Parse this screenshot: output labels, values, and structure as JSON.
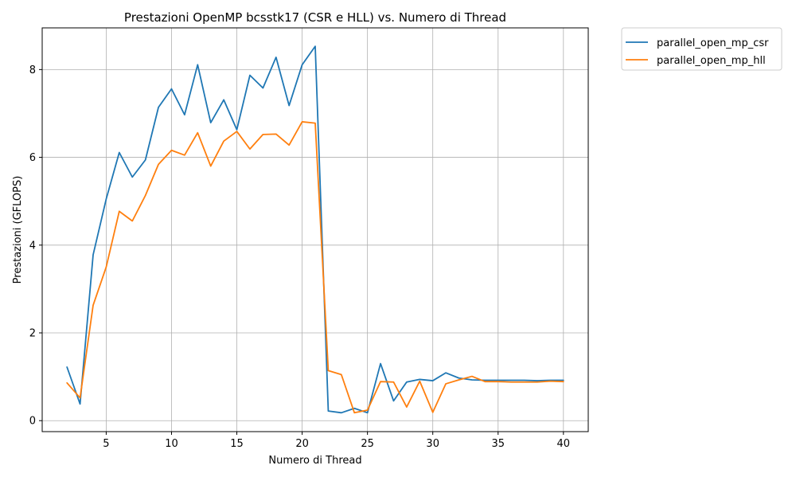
{
  "chart_data": {
    "type": "line",
    "title": "Prestazioni OpenMP bcsstk17 (CSR e HLL) vs. Numero di Thread",
    "xlabel": "Numero di Thread",
    "ylabel": "Prestazioni (GFLOPS)",
    "xlim": [
      0.1,
      41.9
    ],
    "ylim": [
      -0.25,
      8.95
    ],
    "xticks": [
      5,
      10,
      15,
      20,
      25,
      30,
      35,
      40
    ],
    "yticks": [
      0,
      2,
      4,
      6,
      8
    ],
    "grid": true,
    "legend_position": "outside-top-right",
    "x": [
      2,
      3,
      4,
      5,
      6,
      7,
      8,
      9,
      10,
      11,
      12,
      13,
      14,
      15,
      16,
      17,
      18,
      19,
      20,
      21,
      22,
      23,
      24,
      25,
      26,
      27,
      28,
      29,
      30,
      31,
      32,
      33,
      34,
      35,
      36,
      37,
      38,
      39,
      40
    ],
    "series": [
      {
        "name": "parallel_open_mp_csr",
        "color": "#1f77b4",
        "values": [
          1.22,
          0.38,
          3.78,
          5.05,
          6.11,
          5.55,
          5.94,
          7.14,
          7.56,
          6.97,
          8.11,
          6.79,
          7.31,
          6.63,
          7.87,
          7.58,
          8.28,
          7.18,
          8.11,
          8.53,
          0.22,
          0.18,
          0.28,
          0.18,
          1.3,
          0.45,
          0.88,
          0.94,
          0.91,
          1.09,
          0.97,
          0.93,
          0.92,
          0.92,
          0.92,
          0.92,
          0.91,
          0.92,
          0.92
        ]
      },
      {
        "name": "parallel_open_mp_hll",
        "color": "#ff7f0e",
        "values": [
          0.86,
          0.52,
          2.63,
          3.5,
          4.77,
          4.55,
          5.13,
          5.84,
          6.16,
          6.05,
          6.56,
          5.8,
          6.37,
          6.59,
          6.19,
          6.52,
          6.53,
          6.28,
          6.81,
          6.78,
          1.14,
          1.05,
          0.18,
          0.24,
          0.89,
          0.88,
          0.31,
          0.9,
          0.19,
          0.84,
          0.93,
          1.01,
          0.89,
          0.89,
          0.88,
          0.88,
          0.88,
          0.9,
          0.89
        ]
      }
    ]
  }
}
